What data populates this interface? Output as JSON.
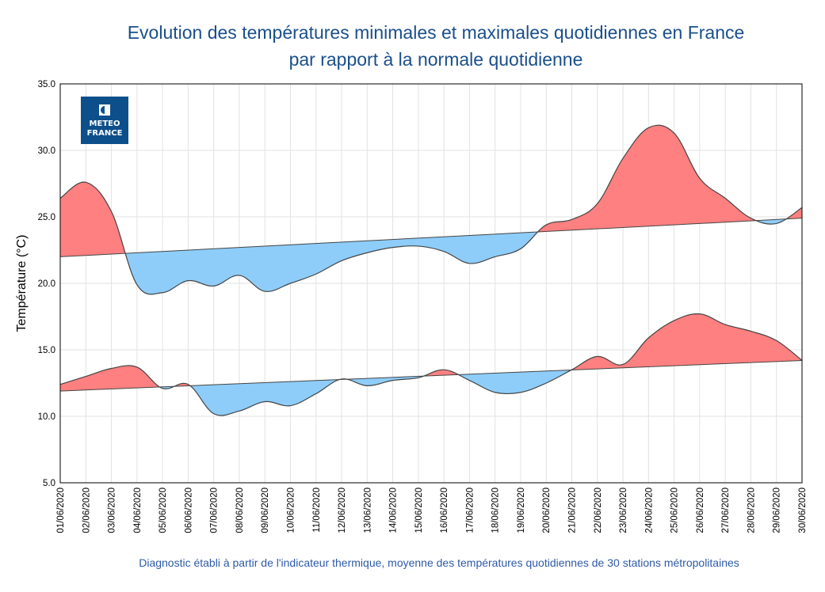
{
  "title_line1": "Evolution des températures minimales et maximales quotidiennes en France",
  "title_line2": "par rapport à la normale quotidienne",
  "footer": "Diagnostic établi à partir de l'indicateur thermique, moyenne des températures quotidiennes de 30 stations métropolitaines",
  "logo": {
    "line1": "METEO",
    "line2": "FRANCE",
    "color": "#0d4f8b"
  },
  "colors": {
    "above": "#ff8080",
    "below": "#8ecdfa",
    "line": "#444444"
  },
  "chart_data": {
    "type": "area",
    "ylabel": "Température (°C)",
    "ylim": [
      5,
      35
    ],
    "yticks": [
      "5.0",
      "10.0",
      "15.0",
      "20.0",
      "25.0",
      "30.0",
      "35.0"
    ],
    "grid": true,
    "categories": [
      "01/06/2020",
      "02/06/2020",
      "03/06/2020",
      "04/06/2020",
      "05/06/2020",
      "06/06/2020",
      "07/06/2020",
      "08/06/2020",
      "09/06/2020",
      "10/06/2020",
      "11/06/2020",
      "12/06/2020",
      "13/06/2020",
      "14/06/2020",
      "15/06/2020",
      "16/06/2020",
      "17/06/2020",
      "18/06/2020",
      "19/06/2020",
      "20/06/2020",
      "21/06/2020",
      "22/06/2020",
      "23/06/2020",
      "24/06/2020",
      "25/06/2020",
      "26/06/2020",
      "27/06/2020",
      "28/06/2020",
      "29/06/2020",
      "30/06/2020"
    ],
    "series": [
      {
        "values": [
          26.4,
          27.6,
          25.4,
          19.9,
          19.3,
          20.2,
          19.8,
          20.6,
          19.4,
          20.0,
          20.7,
          21.7,
          22.3,
          22.7,
          22.8,
          22.4,
          21.5,
          22.0,
          22.6,
          24.4,
          24.8,
          26.0,
          29.4,
          31.7,
          31.3,
          27.9,
          26.4,
          24.9,
          24.5,
          25.7
        ],
        "normal": [
          22.0,
          24.9
        ]
      },
      {
        "values": [
          12.4,
          13.0,
          13.6,
          13.7,
          12.1,
          12.4,
          10.2,
          10.4,
          11.1,
          10.8,
          11.7,
          12.8,
          12.3,
          12.7,
          12.9,
          13.5,
          12.7,
          11.8,
          11.8,
          12.5,
          13.5,
          14.5,
          13.9,
          15.9,
          17.2,
          17.7,
          16.9,
          16.4,
          15.7,
          14.2
        ],
        "normal": [
          11.9,
          14.2
        ]
      }
    ]
  }
}
